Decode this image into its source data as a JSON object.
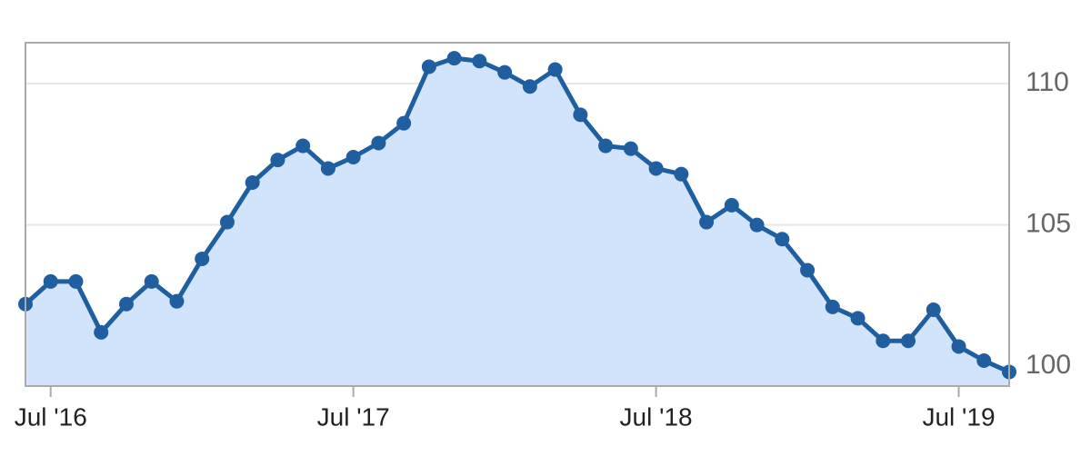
{
  "chart_data": {
    "type": "area",
    "x": [
      "2016-06",
      "2016-07",
      "2016-08",
      "2016-09",
      "2016-10",
      "2016-11",
      "2016-12",
      "2017-01",
      "2017-02",
      "2017-03",
      "2017-04",
      "2017-05",
      "2017-06",
      "2017-07",
      "2017-08",
      "2017-09",
      "2017-10",
      "2017-11",
      "2017-12",
      "2018-01",
      "2018-02",
      "2018-03",
      "2018-04",
      "2018-05",
      "2018-06",
      "2018-07",
      "2018-08",
      "2018-09",
      "2018-10",
      "2018-11",
      "2018-12",
      "2019-01",
      "2019-02",
      "2019-03",
      "2019-04",
      "2019-05",
      "2019-06",
      "2019-07",
      "2019-08",
      "2019-09"
    ],
    "values": [
      102.2,
      103.0,
      103.0,
      101.2,
      102.2,
      103.0,
      102.3,
      103.8,
      105.1,
      106.5,
      107.3,
      107.8,
      107.0,
      107.4,
      107.9,
      108.6,
      110.6,
      110.9,
      110.8,
      110.4,
      109.9,
      110.5,
      108.9,
      107.8,
      107.7,
      107.0,
      106.8,
      105.1,
      105.7,
      105.0,
      104.5,
      103.4,
      102.1,
      101.7,
      100.9,
      100.9,
      102.0,
      100.7,
      100.2,
      99.8
    ],
    "color": "#1f5fa0",
    "fill": "#d2e4fb",
    "xlim": [
      "2016-06",
      "2019-09"
    ],
    "xticks": [
      {
        "value": "2016-07",
        "label": "Jul '16"
      },
      {
        "value": "2017-07",
        "label": "Jul '17"
      },
      {
        "value": "2018-07",
        "label": "Jul '18"
      },
      {
        "value": "2019-07",
        "label": "Jul '19"
      }
    ],
    "ylim": [
      99.3,
      111.45
    ],
    "yticks": [
      100,
      105,
      110
    ],
    "grid": true
  }
}
